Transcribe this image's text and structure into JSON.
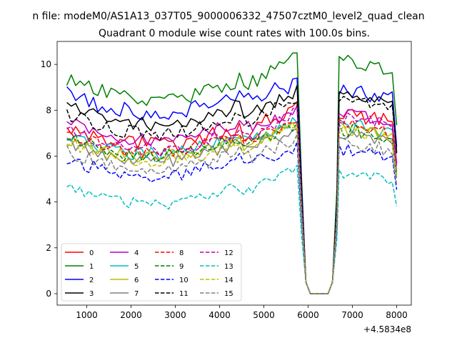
{
  "figure": {
    "suptitle": "n file: modeM0/AS1A13_037T05_9000006332_47507cztM0_level2_quad_clean",
    "title": "Quadrant 0 module wise count rates with 100.0s bins.",
    "x_offset_label": "+4.5834e8"
  },
  "chart_data": {
    "type": "line",
    "title": "Quadrant 0 module wise count rates with 100.0s bins.",
    "xlabel": "",
    "ylabel": "",
    "x_offset": 458340000,
    "xlim": [
      330,
      8330
    ],
    "ylim": [
      -0.5,
      11.0
    ],
    "xticks": [
      1000,
      2000,
      3000,
      4000,
      5000,
      6000,
      7000,
      8000
    ],
    "xtick_labels": [
      "1000",
      "2000",
      "3000",
      "4000",
      "5000",
      "6000",
      "7000",
      "8000"
    ],
    "yticks": [
      0,
      2,
      4,
      6,
      8,
      10
    ],
    "ytick_labels": [
      "0",
      "2",
      "4",
      "6",
      "8",
      "10"
    ],
    "grid": false,
    "legend_position": "lower-left",
    "legend_columns": 4,
    "segments": [
      {
        "x0": 550,
        "x1": 5750,
        "step": 100
      },
      {
        "x0": 6700,
        "x1": 8000,
        "step": 100
      }
    ],
    "gap": {
      "x": [
        5850,
        5950,
        6050,
        6150,
        6250,
        6350,
        6450,
        6550,
        6650
      ],
      "values": [
        4.0,
        0.5,
        0,
        0,
        0,
        0,
        0,
        0.5,
        3.5
      ]
    },
    "series": [
      {
        "name": "0",
        "color": "#ff0000",
        "dash": "solid",
        "base": 7.3,
        "end": 7.9,
        "peak": 8.2,
        "bump": 0.6,
        "amp": 0.35,
        "seed": 1
      },
      {
        "name": "1",
        "color": "#008000",
        "dash": "solid",
        "base": 9.3,
        "end": 10.2,
        "peak": 10.5,
        "bump": 0.8,
        "amp": 0.35,
        "seed": 2
      },
      {
        "name": "2",
        "color": "#0000ff",
        "dash": "solid",
        "base": 8.7,
        "end": 8.9,
        "peak": 9.2,
        "bump": 0.5,
        "amp": 0.35,
        "seed": 3
      },
      {
        "name": "3",
        "color": "#000000",
        "dash": "solid",
        "base": 8.2,
        "end": 8.6,
        "peak": 8.8,
        "bump": 0.6,
        "amp": 0.3,
        "seed": 4
      },
      {
        "name": "4",
        "color": "#bf00bf",
        "dash": "solid",
        "base": 7.5,
        "end": 7.9,
        "peak": 8.0,
        "bump": 0.6,
        "amp": 0.3,
        "seed": 5
      },
      {
        "name": "5",
        "color": "#00bfbf",
        "dash": "solid",
        "base": 6.9,
        "end": 7.4,
        "peak": 7.6,
        "bump": 0.6,
        "amp": 0.3,
        "seed": 6
      },
      {
        "name": "6",
        "color": "#bfbf00",
        "dash": "solid",
        "base": 6.8,
        "end": 7.2,
        "peak": 7.3,
        "bump": 0.5,
        "amp": 0.3,
        "seed": 7
      },
      {
        "name": "7",
        "color": "#808080",
        "dash": "solid",
        "base": 6.6,
        "end": 7.0,
        "peak": 7.2,
        "bump": 0.5,
        "amp": 0.3,
        "seed": 8
      },
      {
        "name": "8",
        "color": "#ff0000",
        "dash": "dashed",
        "base": 7.0,
        "end": 7.4,
        "peak": 7.6,
        "bump": 0.6,
        "amp": 0.3,
        "seed": 9
      },
      {
        "name": "9",
        "color": "#008000",
        "dash": "dashed",
        "base": 6.8,
        "end": 7.2,
        "peak": 7.3,
        "bump": 0.5,
        "amp": 0.3,
        "seed": 10
      },
      {
        "name": "10",
        "color": "#0000ff",
        "dash": "dashed",
        "base": 5.9,
        "end": 6.3,
        "peak": 6.4,
        "bump": 0.5,
        "amp": 0.3,
        "seed": 11
      },
      {
        "name": "11",
        "color": "#000000",
        "dash": "dashed",
        "base": 7.8,
        "end": 8.5,
        "peak": 8.6,
        "bump": 0.7,
        "amp": 0.3,
        "seed": 12
      },
      {
        "name": "12",
        "color": "#bf00bf",
        "dash": "dashed",
        "base": 7.1,
        "end": 7.7,
        "peak": 7.9,
        "bump": 0.6,
        "amp": 0.3,
        "seed": 13
      },
      {
        "name": "13",
        "color": "#00bfbf",
        "dash": "dashed",
        "base": 4.7,
        "end": 5.3,
        "peak": 5.4,
        "bump": 0.5,
        "amp": 0.25,
        "seed": 14
      },
      {
        "name": "14",
        "color": "#bfbf00",
        "dash": "dashed",
        "base": 6.6,
        "end": 7.2,
        "peak": 7.4,
        "bump": 0.6,
        "amp": 0.3,
        "seed": 15
      },
      {
        "name": "15",
        "color": "#808080",
        "dash": "dashed",
        "base": 6.2,
        "end": 6.6,
        "peak": 6.7,
        "bump": 0.5,
        "amp": 0.3,
        "seed": 16
      }
    ]
  }
}
